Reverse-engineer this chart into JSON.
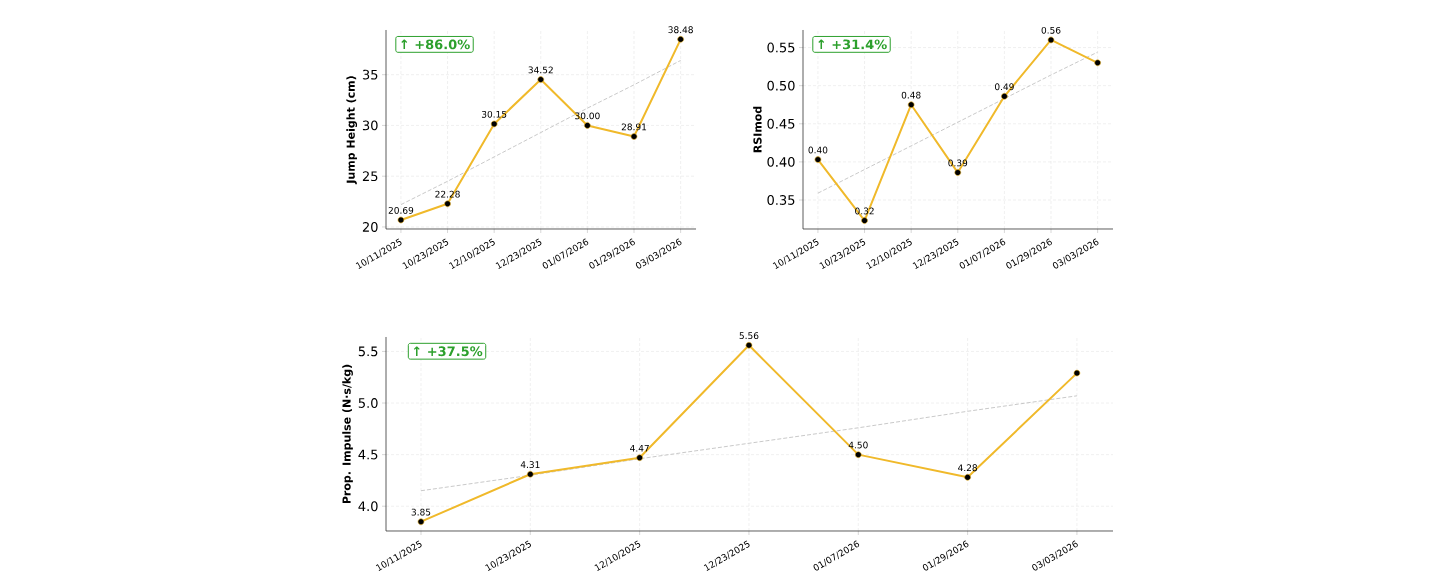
{
  "chart_data": [
    {
      "type": "line",
      "categories": [
        "10/11/2025",
        "10/23/2025",
        "12/10/2025",
        "12/23/2025",
        "01/07/2026",
        "01/29/2026",
        "03/03/2026"
      ],
      "ylabel": "Jump Height (cm)",
      "ylim": [
        19.8,
        39.4
      ],
      "yticks": [
        20,
        25,
        30,
        35
      ],
      "grid": true,
      "annotations": [
        "↑ +86.0%"
      ],
      "series": [
        {
          "color": "#f0b92a",
          "marker": "circle",
          "line_style": "solid",
          "values": [
            20.69,
            22.28,
            30.15,
            34.52,
            30.0,
            28.91,
            38.48
          ],
          "value_labels": [
            "20.69",
            "22.28",
            "30.15",
            "34.52",
            "30.00",
            "28.91",
            "38.48"
          ]
        },
        {
          "type": "line",
          "color": "#bbbbbb",
          "marker": "none",
          "line_style": "dashed",
          "values": [
            22.2,
            24.5,
            26.9,
            29.3,
            31.7,
            34.0,
            36.4
          ]
        }
      ]
    },
    {
      "type": "line",
      "categories": [
        "10/11/2025",
        "10/23/2025",
        "12/10/2025",
        "12/23/2025",
        "01/07/2026",
        "01/29/2026",
        "03/03/2026"
      ],
      "ylabel": "RSImod",
      "ylim": [
        0.312,
        0.573
      ],
      "yticks": [
        {
          "value": 0.35,
          "label": "0.35"
        },
        {
          "value": 0.4,
          "label": "0.40"
        },
        {
          "value": 0.45,
          "label": "0.45"
        },
        {
          "value": 0.5,
          "label": "0.50"
        },
        {
          "value": 0.55,
          "label": "0.55"
        }
      ],
      "grid": true,
      "annotations": [
        "↑ +31.4%"
      ],
      "series": [
        {
          "color": "#f0b92a",
          "marker": "circle",
          "line_style": "solid",
          "values": [
            0.403,
            0.323,
            0.475,
            0.386,
            0.486,
            0.56,
            0.53
          ],
          "value_labels": [
            "0.40",
            "0.32",
            "0.48",
            "0.39",
            "0.49",
            "0.56",
            null
          ]
        },
        {
          "type": "line",
          "color": "#bbbbbb",
          "marker": "none",
          "line_style": "dashed",
          "values": [
            0.359,
            0.39,
            0.421,
            0.452,
            0.483,
            0.514,
            0.544
          ]
        }
      ]
    },
    {
      "type": "line",
      "categories": [
        "10/11/2025",
        "10/23/2025",
        "12/10/2025",
        "12/23/2025",
        "01/07/2026",
        "01/29/2026",
        "03/03/2026"
      ],
      "ylabel": "Prop. Impulse (N·s/kg)",
      "ylim": [
        3.76,
        5.64
      ],
      "yticks": [
        {
          "value": 4.0,
          "label": "4.0"
        },
        {
          "value": 4.5,
          "label": "4.5"
        },
        {
          "value": 5.0,
          "label": "5.0"
        },
        {
          "value": 5.5,
          "label": "5.5"
        }
      ],
      "grid": true,
      "annotations": [
        "↑ +37.5%"
      ],
      "series": [
        {
          "color": "#f0b92a",
          "marker": "circle",
          "line_style": "solid",
          "values": [
            3.85,
            4.31,
            4.47,
            5.56,
            4.5,
            4.28,
            5.29
          ],
          "value_labels": [
            "3.85",
            "4.31",
            "4.47",
            "5.56",
            "4.50",
            "4.28",
            null
          ]
        },
        {
          "type": "line",
          "color": "#bbbbbb",
          "marker": "none",
          "line_style": "dashed",
          "values": [
            4.15,
            4.3,
            4.46,
            4.61,
            4.76,
            4.92,
            5.07
          ]
        }
      ]
    }
  ]
}
